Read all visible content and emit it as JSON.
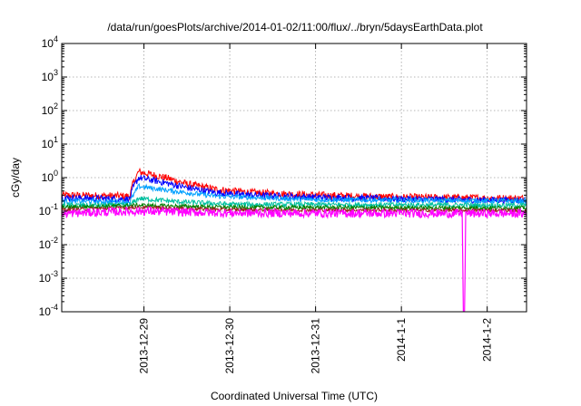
{
  "chart_data": {
    "type": "line",
    "title": "/data/run/goesPlots/archive/2014-01-02/11:00/flux/../bryn/5daysEarthData.plot",
    "xlabel": "Coordinated Universal Time (UTC)",
    "ylabel": "cGy/day",
    "y_scale": "log",
    "ylim": [
      0.0001,
      10000
    ],
    "y_ticks": [
      {
        "base": "10",
        "exp": "-4",
        "value": 0.0001
      },
      {
        "base": "10",
        "exp": "-3",
        "value": 0.001
      },
      {
        "base": "10",
        "exp": "-2",
        "value": 0.01
      },
      {
        "base": "10",
        "exp": "-1",
        "value": 0.1
      },
      {
        "base": "10",
        "exp": "0",
        "value": 1
      },
      {
        "base": "10",
        "exp": "1",
        "value": 10
      },
      {
        "base": "10",
        "exp": "2",
        "value": 100
      },
      {
        "base": "10",
        "exp": "3",
        "value": 1000
      },
      {
        "base": "10",
        "exp": "4",
        "value": 10000
      }
    ],
    "xlim": [
      "2013-12-28 01:00",
      "2014-01-02 11:00"
    ],
    "x_ticks": [
      {
        "label": "2013-12-29",
        "value": "2013-12-29 00:00"
      },
      {
        "label": "2013-12-30",
        "value": "2013-12-30 00:00"
      },
      {
        "label": "2013-12-31",
        "value": "2013-12-31 00:00"
      },
      {
        "label": "2014-1-1",
        "value": "2014-01-01 00:00"
      },
      {
        "label": "2014-1-2",
        "value": "2014-01-02 00:00"
      }
    ],
    "grid": true,
    "legend": "none",
    "series": [
      {
        "color": "#ff0000",
        "noise": 0.22,
        "points": [
          [
            "2013-12-28 01:00",
            0.3
          ],
          [
            "2013-12-28 20:00",
            0.28
          ],
          [
            "2013-12-28 21:00",
            0.7
          ],
          [
            "2013-12-28 22:30",
            1.5
          ],
          [
            "2013-12-29 06:00",
            1.0
          ],
          [
            "2013-12-29 12:00",
            0.65
          ],
          [
            "2013-12-29 20:00",
            0.45
          ],
          [
            "2013-12-30 06:00",
            0.36
          ],
          [
            "2013-12-31 00:00",
            0.3
          ],
          [
            "2014-01-01 00:00",
            0.26
          ],
          [
            "2014-01-02 11:00",
            0.24
          ]
        ]
      },
      {
        "color": "#0000ff",
        "noise": 0.2,
        "points": [
          [
            "2013-12-28 01:00",
            0.25
          ],
          [
            "2013-12-28 20:00",
            0.23
          ],
          [
            "2013-12-28 21:00",
            0.5
          ],
          [
            "2013-12-28 22:30",
            1.0
          ],
          [
            "2013-12-29 06:00",
            0.7
          ],
          [
            "2013-12-29 12:00",
            0.5
          ],
          [
            "2013-12-29 20:00",
            0.36
          ],
          [
            "2013-12-30 06:00",
            0.3
          ],
          [
            "2013-12-31 00:00",
            0.26
          ],
          [
            "2014-01-01 00:00",
            0.23
          ],
          [
            "2014-01-02 11:00",
            0.21
          ]
        ]
      },
      {
        "color": "#00a0ff",
        "noise": 0.15,
        "points": [
          [
            "2013-12-28 01:00",
            0.2
          ],
          [
            "2013-12-28 20:00",
            0.19
          ],
          [
            "2013-12-28 22:30",
            0.55
          ],
          [
            "2013-12-29 08:00",
            0.4
          ],
          [
            "2013-12-29 20:00",
            0.28
          ],
          [
            "2013-12-31 00:00",
            0.22
          ],
          [
            "2014-01-02 11:00",
            0.2
          ]
        ]
      },
      {
        "color": "#00c0a0",
        "noise": 0.15,
        "points": [
          [
            "2013-12-28 01:00",
            0.15
          ],
          [
            "2013-12-28 20:00",
            0.15
          ],
          [
            "2013-12-28 22:30",
            0.24
          ],
          [
            "2013-12-29 10:00",
            0.19
          ],
          [
            "2013-12-30 00:00",
            0.16
          ],
          [
            "2014-01-02 11:00",
            0.15
          ]
        ]
      },
      {
        "color": "#008000",
        "noise": 0.12,
        "points": [
          [
            "2013-12-28 01:00",
            0.13
          ],
          [
            "2013-12-28 22:30",
            0.15
          ],
          [
            "2013-12-30 00:00",
            0.13
          ],
          [
            "2014-01-02 11:00",
            0.125
          ]
        ]
      },
      {
        "color": "#a02020",
        "noise": 0.1,
        "points": [
          [
            "2013-12-28 01:00",
            0.11
          ],
          [
            "2013-12-28 22:30",
            0.13
          ],
          [
            "2013-12-30 00:00",
            0.11
          ],
          [
            "2014-01-02 11:00",
            0.105
          ]
        ]
      },
      {
        "color": "#ff00ff",
        "noise": 0.25,
        "points": [
          [
            "2013-12-28 01:00",
            0.085
          ],
          [
            "2013-12-28 22:30",
            0.1
          ],
          [
            "2013-12-30 00:00",
            0.088
          ],
          [
            "2014-01-01 17:00",
            0.085
          ],
          [
            "2014-01-01 17:20",
            0.0001
          ],
          [
            "2014-01-01 17:40",
            0.0001
          ],
          [
            "2014-01-01 18:00",
            0.085
          ],
          [
            "2014-01-02 11:00",
            0.085
          ]
        ]
      }
    ]
  }
}
